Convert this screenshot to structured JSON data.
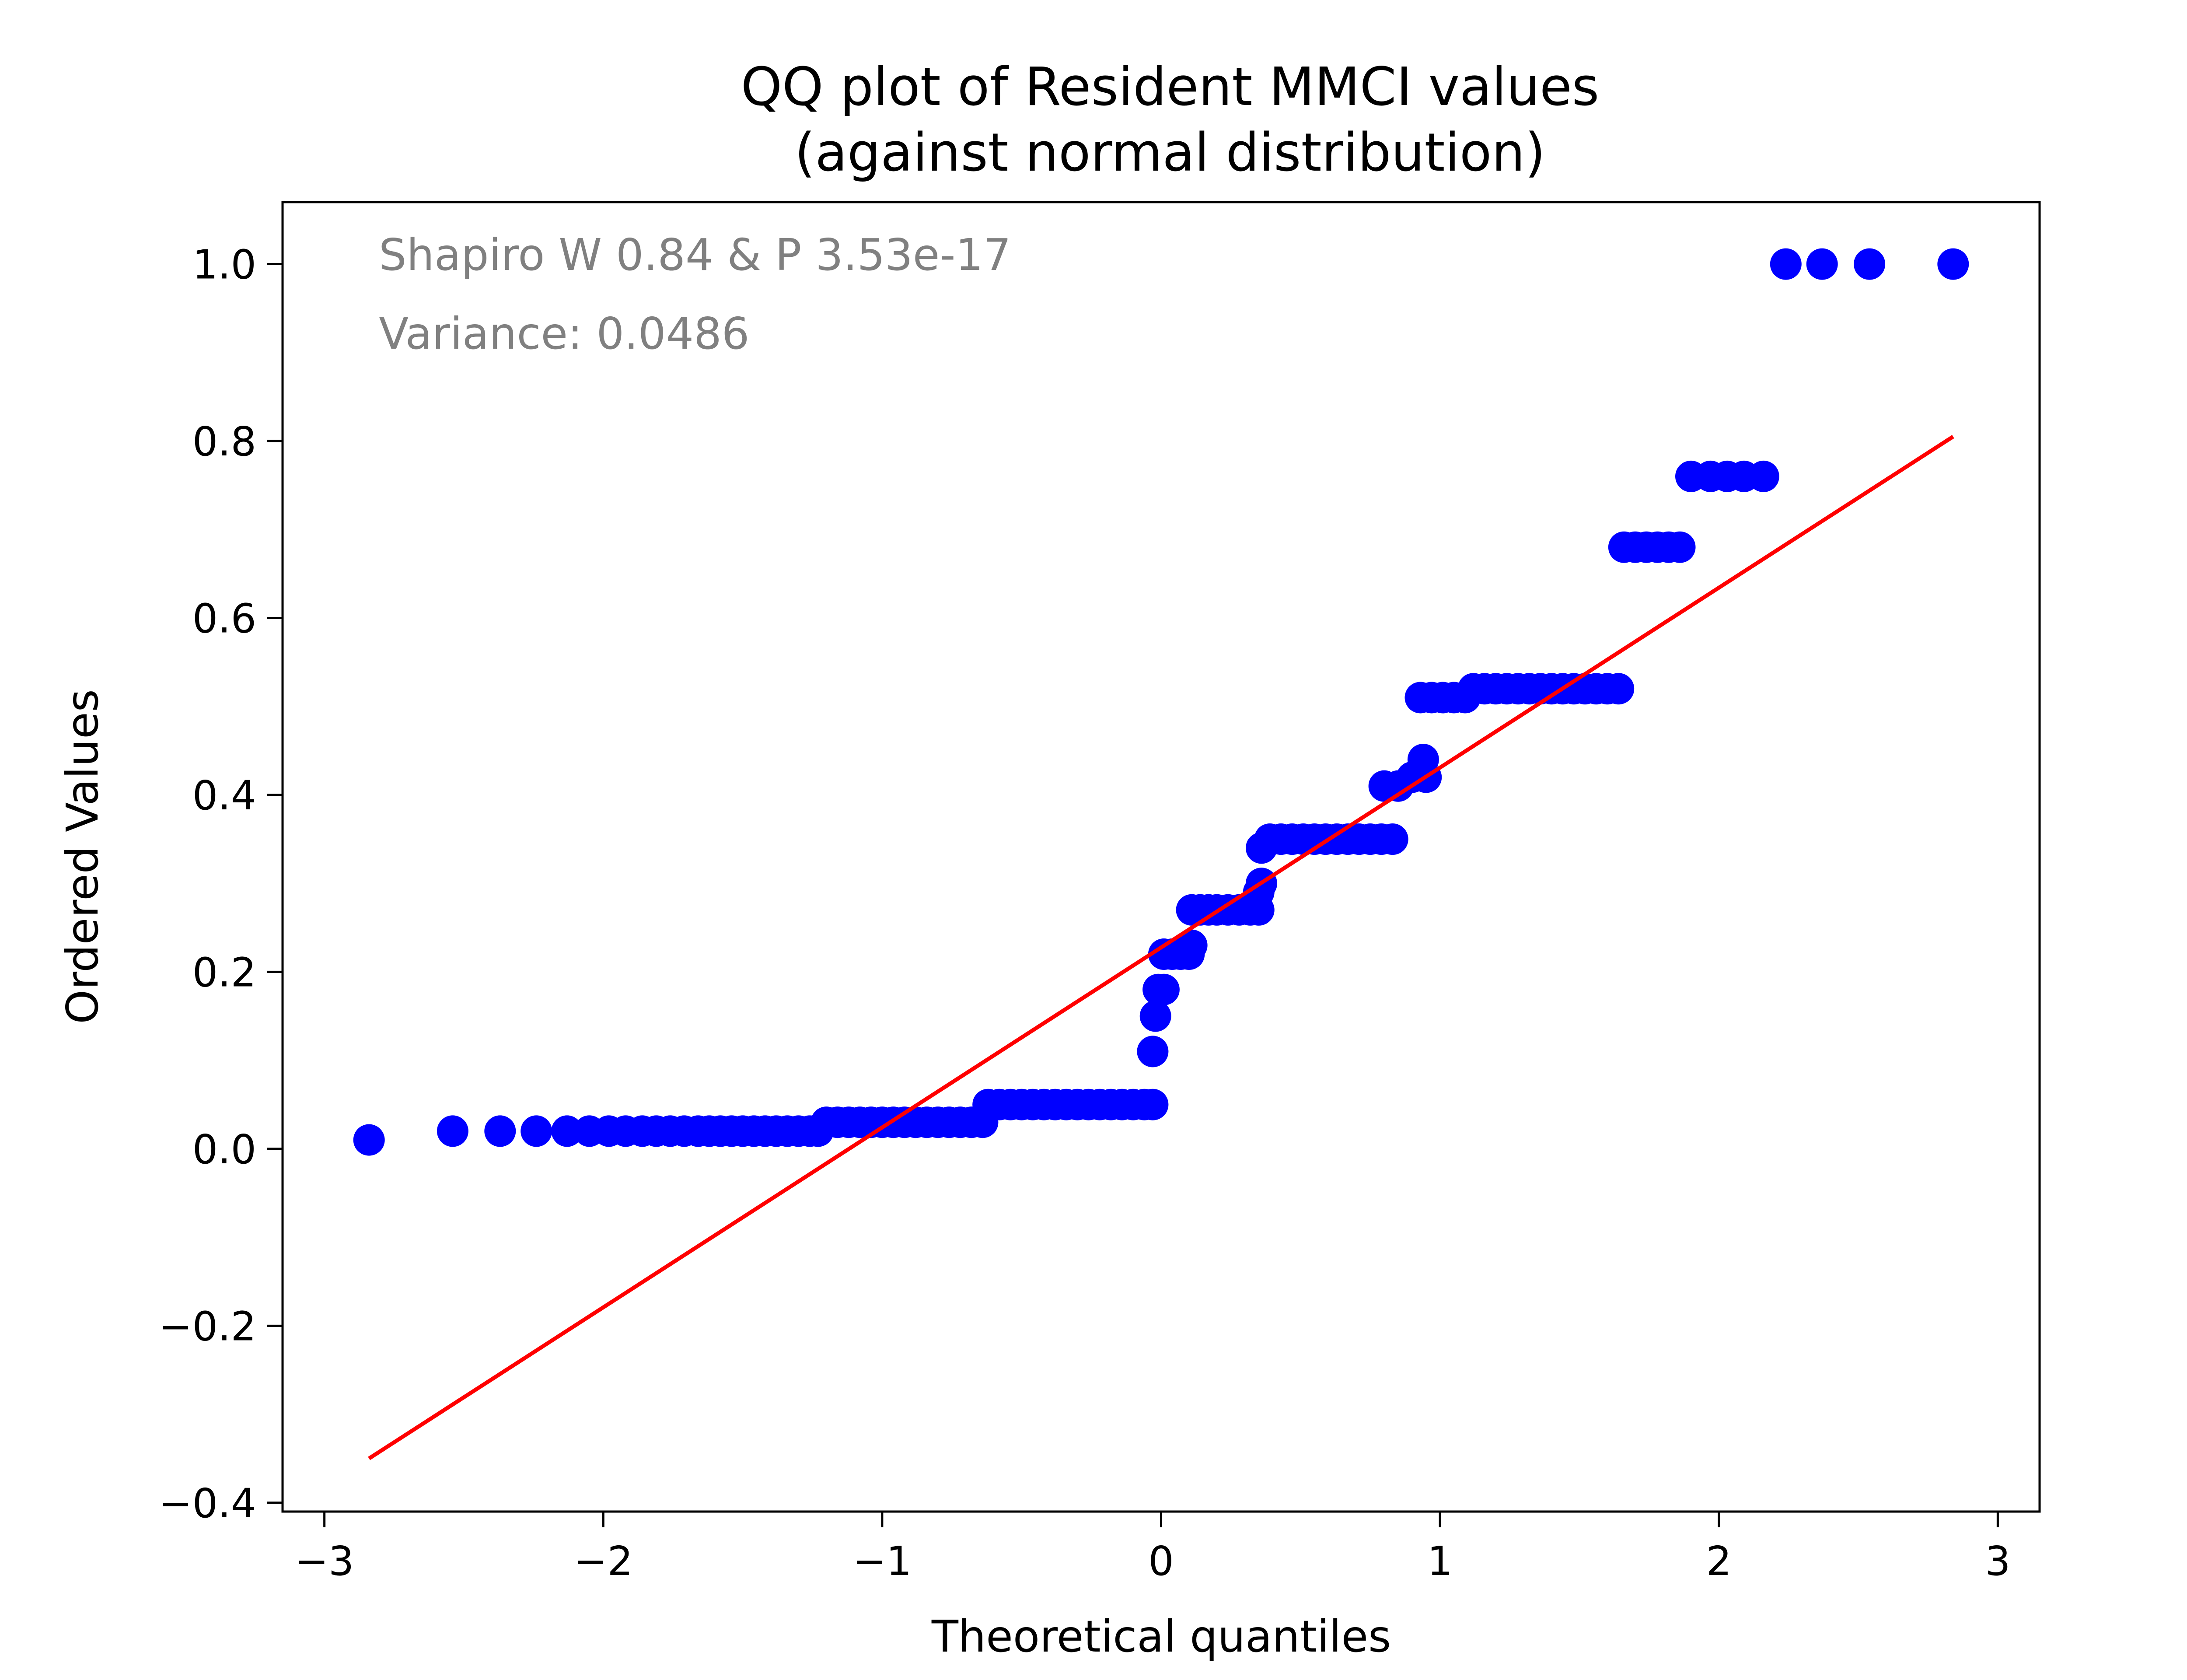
{
  "chart_data": {
    "type": "scatter",
    "title": [
      "QQ plot of Resident MMCI values",
      "(against normal distribution)"
    ],
    "xlabel": "Theoretical quantiles",
    "ylabel": "Ordered Values",
    "xlim": [
      -3.15,
      3.15
    ],
    "ylim": [
      -0.41,
      1.07
    ],
    "x_ticks": [
      -3,
      -2,
      -1,
      0,
      1,
      2,
      3
    ],
    "x_tick_labels": [
      "−3",
      "−2",
      "−1",
      "0",
      "1",
      "2",
      "3"
    ],
    "y_ticks": [
      -0.4,
      -0.2,
      0.0,
      0.2,
      0.4,
      0.6,
      0.8,
      1.0
    ],
    "y_tick_labels": [
      "−0.4",
      "−0.2",
      "0.0",
      "0.2",
      "0.4",
      "0.6",
      "0.8",
      "1.0"
    ],
    "grid": false,
    "annotations": [
      "Shapiro W 0.84 & P 3.53e-17",
      "Variance: 0.0486"
    ],
    "colors": {
      "points": "#0000ff",
      "fit_line": "#ff0000",
      "annotation": "#808080"
    },
    "fit_line": {
      "x": [
        -2.84,
        2.84
      ],
      "y": [
        -0.35,
        0.805
      ]
    },
    "point_groups": [
      {
        "x": [
          -2.84
        ],
        "y": 0.01
      },
      {
        "x": [
          -2.54,
          -2.37,
          -2.24,
          -2.13,
          -2.05,
          -1.98,
          -1.92,
          -1.86,
          -1.81,
          -1.76,
          -1.71,
          -1.66,
          -1.62,
          -1.58,
          -1.54,
          -1.5,
          -1.46,
          -1.42,
          -1.38,
          -1.34,
          -1.3,
          -1.26,
          -1.23
        ],
        "y": 0.02
      },
      {
        "x": [
          -1.2,
          -1.16,
          -1.12,
          -1.08,
          -1.04,
          -1.0,
          -0.96,
          -0.92,
          -0.88,
          -0.84,
          -0.8,
          -0.76,
          -0.72,
          -0.68,
          -0.64
        ],
        "y": 0.03
      },
      {
        "x": [
          -0.62,
          -0.58,
          -0.54,
          -0.5,
          -0.46,
          -0.42,
          -0.38,
          -0.34,
          -0.3,
          -0.26,
          -0.22,
          -0.18,
          -0.14,
          -0.1,
          -0.06,
          -0.03
        ],
        "y": 0.05
      },
      {
        "x": [
          -0.03
        ],
        "y": 0.11
      },
      {
        "x": [
          -0.02
        ],
        "y": 0.15
      },
      {
        "x": [
          -0.01,
          0.01
        ],
        "y": 0.18
      },
      {
        "x": [
          0.01,
          0.04,
          0.07,
          0.1
        ],
        "y": 0.22
      },
      {
        "x": [
          0.11
        ],
        "y": 0.23
      },
      {
        "x": [
          0.11,
          0.14,
          0.17,
          0.2,
          0.24,
          0.28,
          0.32,
          0.35
        ],
        "y": 0.27
      },
      {
        "x": [
          0.35
        ],
        "y": 0.29
      },
      {
        "x": [
          0.36
        ],
        "y": 0.3
      },
      {
        "x": [
          0.36
        ],
        "y": 0.34
      },
      {
        "x": [
          0.39,
          0.43,
          0.47,
          0.51,
          0.55,
          0.59,
          0.63,
          0.67,
          0.71,
          0.75,
          0.79,
          0.83
        ],
        "y": 0.35
      },
      {
        "x": [
          0.8,
          0.85
        ],
        "y": 0.41
      },
      {
        "x": [
          0.94
        ],
        "y": 0.44
      },
      {
        "x": [
          0.9,
          0.95
        ],
        "y": 0.42
      },
      {
        "x": [
          0.93,
          0.97,
          1.01,
          1.05,
          1.09
        ],
        "y": 0.51
      },
      {
        "x": [
          1.12,
          1.16,
          1.2,
          1.24,
          1.28,
          1.32,
          1.36,
          1.4,
          1.44,
          1.48,
          1.52,
          1.56,
          1.6,
          1.64
        ],
        "y": 0.52
      },
      {
        "x": [
          1.66,
          1.7,
          1.74,
          1.78,
          1.82,
          1.86
        ],
        "y": 0.68
      },
      {
        "x": [
          1.9,
          1.97,
          2.03,
          2.09,
          2.16
        ],
        "y": 0.76
      },
      {
        "x": [
          2.24,
          2.37,
          2.54,
          2.84
        ],
        "y": 1.0
      }
    ]
  }
}
